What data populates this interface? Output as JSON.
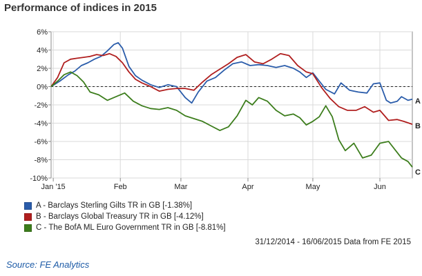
{
  "title": "Performance of indices in 2015",
  "chart_data": {
    "type": "line",
    "ylim": [
      -10,
      6
    ],
    "yticks": [
      6,
      4,
      2,
      0,
      -2,
      -4,
      -6,
      -8,
      -10
    ],
    "ytick_labels": [
      "6%",
      "4%",
      "2%",
      "0%",
      "-2%",
      "-4%",
      "-6%",
      "-8%",
      "-10%"
    ],
    "xlim": [
      "2014-12-31",
      "2015-06-16"
    ],
    "xticks": [
      {
        "date": "2015-01-01",
        "label": "Jan '15"
      },
      {
        "date": "2015-02-01",
        "label": "Feb"
      },
      {
        "date": "2015-03-01",
        "label": "Mar"
      },
      {
        "date": "2015-04-01",
        "label": "Apr"
      },
      {
        "date": "2015-05-01",
        "label": "May"
      },
      {
        "date": "2015-06-01",
        "label": "Jun"
      }
    ],
    "grid": true,
    "legend_position": "bottom-left",
    "series": [
      {
        "name": "A - Barclays Sterling Gilts TR in GB [-1.38%]",
        "end_label": "A",
        "color": "#2a5caa",
        "points": [
          [
            "2014-12-31",
            0.0
          ],
          [
            "2015-01-04",
            0.6
          ],
          [
            "2015-01-08",
            1.3
          ],
          [
            "2015-01-11",
            1.7
          ],
          [
            "2015-01-14",
            2.3
          ],
          [
            "2015-01-17",
            2.6
          ],
          [
            "2015-01-20",
            3.0
          ],
          [
            "2015-01-23",
            3.3
          ],
          [
            "2015-01-26",
            3.9
          ],
          [
            "2015-01-29",
            4.6
          ],
          [
            "2015-01-31",
            4.8
          ],
          [
            "2015-02-02",
            4.2
          ],
          [
            "2015-02-05",
            2.2
          ],
          [
            "2015-02-08",
            1.2
          ],
          [
            "2015-02-11",
            0.7
          ],
          [
            "2015-02-15",
            0.2
          ],
          [
            "2015-02-19",
            -0.1
          ],
          [
            "2015-02-23",
            0.2
          ],
          [
            "2015-02-27",
            0.0
          ],
          [
            "2015-03-03",
            -1.2
          ],
          [
            "2015-03-06",
            -1.8
          ],
          [
            "2015-03-09",
            -0.6
          ],
          [
            "2015-03-13",
            0.6
          ],
          [
            "2015-03-17",
            1.0
          ],
          [
            "2015-03-21",
            1.8
          ],
          [
            "2015-03-25",
            2.5
          ],
          [
            "2015-03-29",
            2.7
          ],
          [
            "2015-04-02",
            2.3
          ],
          [
            "2015-04-06",
            2.4
          ],
          [
            "2015-04-10",
            2.3
          ],
          [
            "2015-04-14",
            2.1
          ],
          [
            "2015-04-18",
            2.3
          ],
          [
            "2015-04-22",
            2.0
          ],
          [
            "2015-04-25",
            1.6
          ],
          [
            "2015-04-28",
            1.0
          ],
          [
            "2015-05-01",
            1.5
          ],
          [
            "2015-05-04",
            0.6
          ],
          [
            "2015-05-07",
            -0.3
          ],
          [
            "2015-05-11",
            -0.8
          ],
          [
            "2015-05-14",
            0.4
          ],
          [
            "2015-05-18",
            -0.4
          ],
          [
            "2015-05-22",
            -0.6
          ],
          [
            "2015-05-26",
            -0.7
          ],
          [
            "2015-05-29",
            0.3
          ],
          [
            "2015-06-01",
            0.4
          ],
          [
            "2015-06-04",
            -1.5
          ],
          [
            "2015-06-06",
            -1.8
          ],
          [
            "2015-06-09",
            -1.6
          ],
          [
            "2015-06-11",
            -1.1
          ],
          [
            "2015-06-14",
            -1.5
          ],
          [
            "2015-06-16",
            -1.38
          ]
        ]
      },
      {
        "name": "B - Barclays Global Treasury TR in GB [-4.12%]",
        "end_label": "B",
        "color": "#b01e1e",
        "points": [
          [
            "2014-12-31",
            0.0
          ],
          [
            "2015-01-03",
            1.0
          ],
          [
            "2015-01-06",
            2.6
          ],
          [
            "2015-01-09",
            3.0
          ],
          [
            "2015-01-12",
            3.1
          ],
          [
            "2015-01-15",
            3.2
          ],
          [
            "2015-01-18",
            3.3
          ],
          [
            "2015-01-21",
            3.5
          ],
          [
            "2015-01-24",
            3.4
          ],
          [
            "2015-01-27",
            3.6
          ],
          [
            "2015-01-30",
            3.3
          ],
          [
            "2015-02-02",
            2.6
          ],
          [
            "2015-02-05",
            1.6
          ],
          [
            "2015-02-08",
            0.8
          ],
          [
            "2015-02-11",
            0.4
          ],
          [
            "2015-02-15",
            0.0
          ],
          [
            "2015-02-19",
            -0.5
          ],
          [
            "2015-02-23",
            -0.3
          ],
          [
            "2015-02-27",
            -0.2
          ],
          [
            "2015-03-03",
            -0.2
          ],
          [
            "2015-03-07",
            -0.4
          ],
          [
            "2015-03-11",
            0.5
          ],
          [
            "2015-03-15",
            1.3
          ],
          [
            "2015-03-19",
            1.9
          ],
          [
            "2015-03-23",
            2.5
          ],
          [
            "2015-03-27",
            3.2
          ],
          [
            "2015-03-31",
            3.5
          ],
          [
            "2015-04-04",
            2.7
          ],
          [
            "2015-04-08",
            2.5
          ],
          [
            "2015-04-12",
            3.0
          ],
          [
            "2015-04-16",
            3.6
          ],
          [
            "2015-04-20",
            3.4
          ],
          [
            "2015-04-24",
            2.3
          ],
          [
            "2015-04-28",
            1.6
          ],
          [
            "2015-05-01",
            1.4
          ],
          [
            "2015-05-05",
            -0.1
          ],
          [
            "2015-05-09",
            -1.3
          ],
          [
            "2015-05-13",
            -2.2
          ],
          [
            "2015-05-17",
            -2.6
          ],
          [
            "2015-05-21",
            -2.6
          ],
          [
            "2015-05-25",
            -2.2
          ],
          [
            "2015-05-29",
            -2.8
          ],
          [
            "2015-06-01",
            -2.6
          ],
          [
            "2015-06-05",
            -3.7
          ],
          [
            "2015-06-09",
            -3.6
          ],
          [
            "2015-06-12",
            -3.8
          ],
          [
            "2015-06-16",
            -4.12
          ]
        ]
      },
      {
        "name": "C - The BofA ML Euro Government TR in GB [-8.81%]",
        "end_label": "C",
        "color": "#3c7d1c",
        "points": [
          [
            "2014-12-31",
            0.0
          ],
          [
            "2015-01-03",
            0.6
          ],
          [
            "2015-01-06",
            1.3
          ],
          [
            "2015-01-09",
            1.6
          ],
          [
            "2015-01-12",
            1.2
          ],
          [
            "2015-01-15",
            0.5
          ],
          [
            "2015-01-18",
            -0.6
          ],
          [
            "2015-01-22",
            -0.9
          ],
          [
            "2015-01-26",
            -1.5
          ],
          [
            "2015-01-30",
            -1.1
          ],
          [
            "2015-02-03",
            -0.7
          ],
          [
            "2015-02-07",
            -1.6
          ],
          [
            "2015-02-11",
            -2.1
          ],
          [
            "2015-02-15",
            -2.4
          ],
          [
            "2015-02-19",
            -2.5
          ],
          [
            "2015-02-23",
            -2.3
          ],
          [
            "2015-02-27",
            -2.6
          ],
          [
            "2015-03-03",
            -3.2
          ],
          [
            "2015-03-07",
            -3.5
          ],
          [
            "2015-03-11",
            -3.8
          ],
          [
            "2015-03-15",
            -4.3
          ],
          [
            "2015-03-19",
            -4.8
          ],
          [
            "2015-03-23",
            -4.4
          ],
          [
            "2015-03-27",
            -3.2
          ],
          [
            "2015-03-31",
            -1.5
          ],
          [
            "2015-04-03",
            -2.0
          ],
          [
            "2015-04-06",
            -1.2
          ],
          [
            "2015-04-10",
            -1.6
          ],
          [
            "2015-04-14",
            -2.6
          ],
          [
            "2015-04-18",
            -3.2
          ],
          [
            "2015-04-22",
            -3.0
          ],
          [
            "2015-04-25",
            -3.4
          ],
          [
            "2015-04-28",
            -4.2
          ],
          [
            "2015-05-01",
            -3.8
          ],
          [
            "2015-05-04",
            -3.3
          ],
          [
            "2015-05-07",
            -2.1
          ],
          [
            "2015-05-10",
            -3.3
          ],
          [
            "2015-05-13",
            -5.8
          ],
          [
            "2015-05-16",
            -7.0
          ],
          [
            "2015-05-20",
            -6.2
          ],
          [
            "2015-05-24",
            -7.8
          ],
          [
            "2015-05-28",
            -7.5
          ],
          [
            "2015-06-01",
            -6.2
          ],
          [
            "2015-06-05",
            -6.0
          ],
          [
            "2015-06-08",
            -6.9
          ],
          [
            "2015-06-11",
            -7.8
          ],
          [
            "2015-06-14",
            -8.2
          ],
          [
            "2015-06-16",
            -8.81
          ]
        ]
      }
    ]
  },
  "range_note": "31/12/2014 - 16/06/2015 Data from FE 2015",
  "source": {
    "label": "Source:",
    "value": "FE Analytics"
  }
}
